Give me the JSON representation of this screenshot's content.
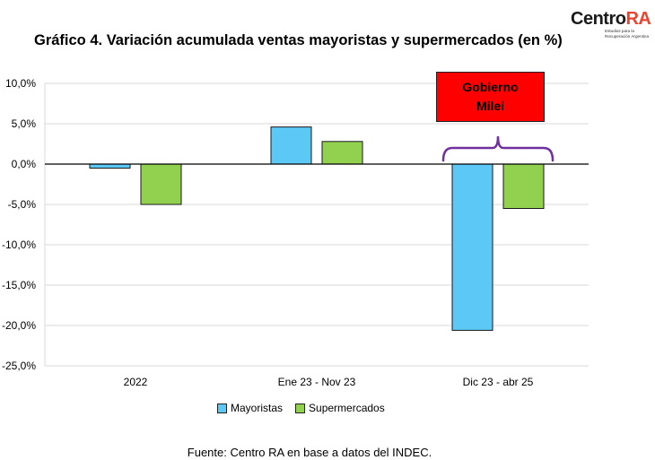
{
  "title": "Gráfico 4. Variación acumulada ventas mayoristas y supermercados (en %)",
  "logo": {
    "name_part1": "Centro",
    "name_part2": "RA",
    "tagline": "Estudios para la Recuperación Argentina",
    "accent_color": "#e8442f"
  },
  "source": "Fuente: Centro RA en base a datos del INDEC.",
  "annotation": {
    "text": "Gobierno Milei",
    "background": "#ff0000",
    "bracket_color": "#7030a0"
  },
  "chart_data": {
    "type": "bar",
    "categories": [
      "2022",
      "Ene 23 - Nov 23",
      "Dic 23 - abr 25"
    ],
    "series": [
      {
        "name": "Mayoristas",
        "color": "#5bc8f5",
        "values": [
          -0.5,
          4.6,
          -20.6
        ]
      },
      {
        "name": "Supermercados",
        "color": "#92d050",
        "values": [
          -5.0,
          2.8,
          -5.5
        ]
      }
    ],
    "ylim": [
      -25,
      10
    ],
    "yticks": [
      10,
      5,
      0,
      -5,
      -10,
      -15,
      -20,
      -25
    ],
    "ytick_labels": [
      "10,0%",
      "5,0%",
      "0,0%",
      "-5,0%",
      "-10,0%",
      "-15,0%",
      "-20,0%",
      "-25,0%"
    ],
    "grid": true,
    "legend_position": "bottom"
  }
}
